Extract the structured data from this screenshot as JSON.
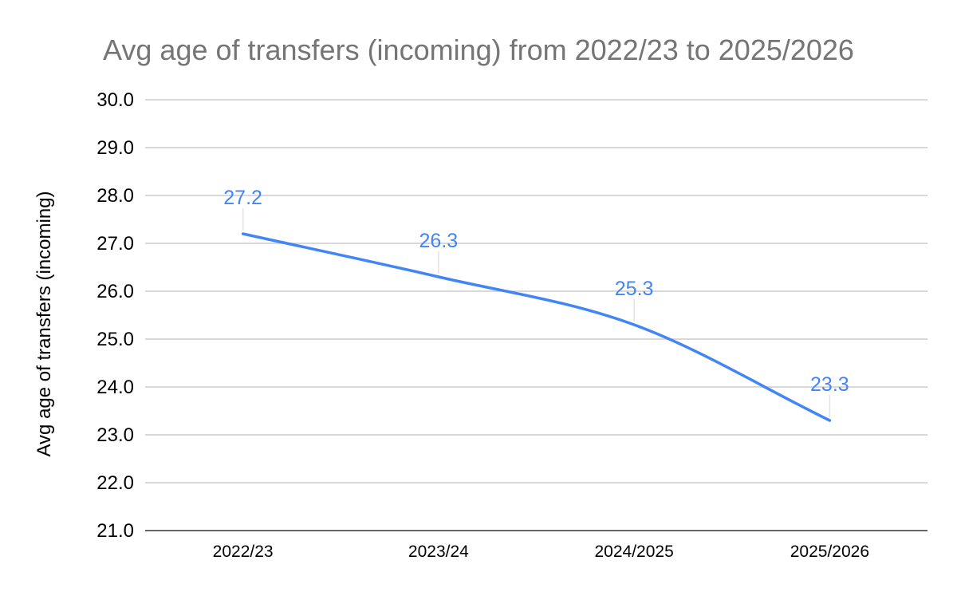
{
  "chart_data": {
    "type": "line",
    "title": "Avg age of transfers (incoming) from 2022/23 to 2025/2026",
    "xlabel": "",
    "ylabel": "Avg age of transfers (incoming)",
    "categories": [
      "2022/23",
      "2023/24",
      "2024/2025",
      "2025/2026"
    ],
    "series": [
      {
        "name": "Avg age of transfers (incoming)",
        "values": [
          27.2,
          26.3,
          25.3,
          23.3
        ],
        "data_labels": [
          "27.2",
          "26.3",
          "25.3",
          "23.3"
        ],
        "color": "#4285f4",
        "smooth": true
      }
    ],
    "ylim": [
      21.0,
      30.0
    ],
    "yticks": [
      21.0,
      22.0,
      23.0,
      24.0,
      25.0,
      26.0,
      27.0,
      28.0,
      29.0,
      30.0
    ],
    "ytick_labels": [
      "21.0",
      "22.0",
      "23.0",
      "24.0",
      "25.0",
      "26.0",
      "27.0",
      "28.0",
      "29.0",
      "30.0"
    ],
    "grid": true,
    "legend": "none"
  },
  "colors": {
    "title": "#757575",
    "grid": "#cccccc",
    "baseline": "#333333",
    "series": "#4285f4"
  }
}
